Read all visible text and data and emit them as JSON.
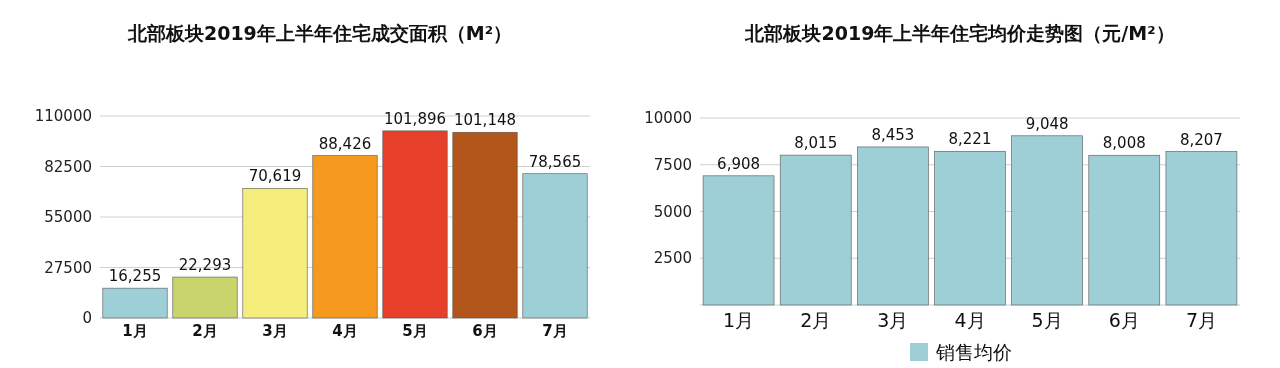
{
  "chart_data": [
    {
      "type": "bar",
      "title": "北部板块2019年上半年住宅成交面积（M²）",
      "categories": [
        "1月",
        "2月",
        "3月",
        "4月",
        "5月",
        "6月",
        "7月"
      ],
      "values": [
        16255,
        22293,
        70619,
        88426,
        101896,
        101148,
        78565
      ],
      "colors": [
        "#9ecfd6",
        "#c9d46c",
        "#f6ee7c",
        "#f59a1e",
        "#e6402b",
        "#b3561c",
        "#9ecfd6"
      ],
      "value_labels": [
        "16,255",
        "22,293",
        "70,619",
        "88,426",
        "101,896",
        "101,148",
        "78,565"
      ],
      "ylim": [
        0,
        110000
      ],
      "yticks": [
        0,
        27500,
        55000,
        82500,
        110000
      ],
      "grid": "y"
    },
    {
      "type": "bar",
      "title": "北部板块2019年上半年住宅均价走势图（元/M²）",
      "categories": [
        "1月",
        "2月",
        "3月",
        "4月",
        "5月",
        "6月",
        "7月"
      ],
      "series": [
        {
          "name": "销售均价",
          "color": "#9ecfd6",
          "values": [
            6908,
            8015,
            8453,
            8221,
            9048,
            8008,
            8207
          ],
          "value_labels": [
            "6,908",
            "8,015",
            "8,453",
            "8,221",
            "9,048",
            "8,008",
            "8,207"
          ]
        }
      ],
      "ylim": [
        0,
        10000
      ],
      "yticks": [
        {
          "value": 0,
          "label": null
        },
        2500,
        5000,
        7500,
        10000
      ],
      "grid": "y",
      "legend": "bottom"
    }
  ]
}
